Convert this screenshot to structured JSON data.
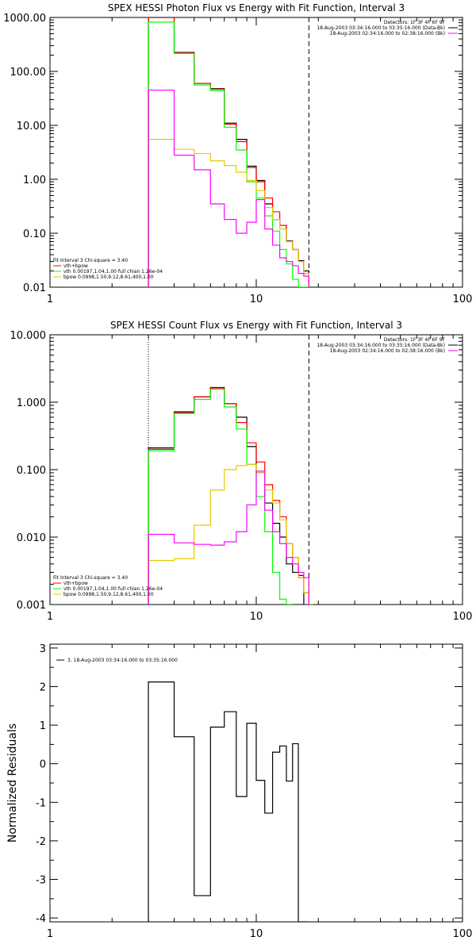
{
  "colors": {
    "data_black": "#000000",
    "total_red": "#ff0000",
    "vth_green": "#00ff00",
    "bpow_yellow": "#e6c800",
    "bk_magenta": "#ff00ff"
  },
  "chart_data": [
    {
      "type": "line",
      "title": "SPEX HESSI Photon Flux vs Energy with Fit Function, Interval 3",
      "xscale": "log",
      "yscale": "log",
      "xlim": [
        1,
        100
      ],
      "ylim": [
        0.01,
        1000
      ],
      "xtick_labels": [
        "1",
        "10",
        "100"
      ],
      "ytick_labels": [
        "1000.00",
        "100.00",
        "10.00",
        "1.00",
        "0.10",
        "0.01"
      ],
      "yticks": [
        1000,
        100,
        10,
        1,
        0.1,
        0.01
      ],
      "xticks": [
        1,
        10,
        100
      ],
      "lower_marker": 3.0,
      "upper_marker": 18.0,
      "legend_top": [
        "Detectors: 1F 3F 4F 6F 9F",
        "18-Aug-2003 03:34:16.000 to 03:35:16.000 (Data-Bk)",
        "18-Aug-2003 02:34:16.000 to 02:38:16.000 (Bk)"
      ],
      "legend_bottom": [
        "Fit Interval 3   Chi-square = 3.40",
        "vth+bpow",
        "vth 0.00197,1.04,1.00  full chian 1.26e-04",
        "bpow 0.0998,1.50,9.12,8.61,400,1.00"
      ],
      "edges": [
        3,
        4,
        5,
        6,
        7,
        8,
        9,
        10,
        11,
        12,
        13,
        14,
        15,
        16,
        17,
        18
      ],
      "series": [
        {
          "name": "Data-Bk",
          "color": "#000000",
          "values": [
            1000,
            225,
            60,
            48,
            11,
            5.5,
            1.75,
            0.95,
            0.35,
            0.18,
            0.14,
            0.072,
            0.05,
            0.031,
            0.02
          ]
        },
        {
          "name": "vth+bpow",
          "color": "#ff0000",
          "values": [
            1000,
            220,
            60,
            47,
            10.5,
            5.0,
            1.65,
            0.9,
            0.45,
            0.25,
            0.14,
            0.07,
            0.05,
            0.03,
            0.018
          ]
        },
        {
          "name": "vth",
          "color": "#00ff00",
          "values": [
            820,
            215,
            56,
            44,
            9.2,
            3.5,
            0.9,
            0.45,
            0.21,
            0.11,
            0.05,
            0.027,
            0.014,
            0.009,
            0.005
          ]
        },
        {
          "name": "bpow",
          "color": "#e6c800",
          "values": [
            5.5,
            3.6,
            3.0,
            2.2,
            1.8,
            1.35,
            0.95,
            0.62,
            0.3,
            0.18,
            0.12,
            0.07,
            0.05,
            0.03,
            0.018
          ]
        },
        {
          "name": "Bk",
          "color": "#ff00ff",
          "values": [
            45,
            2.8,
            1.5,
            0.35,
            0.18,
            0.1,
            0.16,
            0.42,
            0.12,
            0.06,
            0.035,
            0.03,
            0.025,
            0.018,
            0.016
          ]
        }
      ]
    },
    {
      "type": "line",
      "title": "SPEX HESSI Count Flux vs Energy with Fit Function, Interval 3",
      "xscale": "log",
      "yscale": "log",
      "xlim": [
        1,
        100
      ],
      "ylim": [
        0.001,
        10
      ],
      "xtick_labels": [
        "1",
        "10",
        "100"
      ],
      "ytick_labels": [
        "10.000",
        "1.000",
        "0.100",
        "0.010",
        "0.001"
      ],
      "yticks": [
        10,
        1,
        0.1,
        0.01,
        0.001
      ],
      "xticks": [
        1,
        10,
        100
      ],
      "lower_marker": 3.0,
      "upper_marker": 18.0,
      "legend_top": [
        "Detectors: 1F 3F 4F 6F 9F",
        "18-Aug-2003 03:34:16.000 to 03:35:16.000 (Data-Bk)",
        "18-Aug-2003 02:34:16.000 to 02:38:16.000 (Bk)"
      ],
      "legend_bottom": [
        "Fit Interval 3   Chi-square = 3.40",
        "vth+bpow",
        "vth 0.00197,1.04,1.00  full chian 1.26e-04",
        "bpow 0.0998,1.50,9.12,8.61,400,1.00"
      ],
      "edges": [
        3,
        4,
        5,
        6,
        7,
        8,
        9,
        10,
        11,
        12,
        13,
        14,
        15,
        16,
        17,
        18,
        19,
        20
      ],
      "series": [
        {
          "name": "Data-Bk",
          "color": "#000000",
          "values": [
            0.21,
            0.72,
            1.2,
            1.65,
            0.95,
            0.6,
            0.22,
            0.09,
            0.032,
            0.016,
            0.01,
            0.004,
            0.003,
            0.0027
          ]
        },
        {
          "name": "vth+bpow",
          "color": "#ff0000",
          "values": [
            0.2,
            0.7,
            1.2,
            1.62,
            0.95,
            0.5,
            0.25,
            0.13,
            0.06,
            0.035,
            0.02,
            0.008,
            0.005,
            0.0025,
            0.0015,
            0.001
          ]
        },
        {
          "name": "vth",
          "color": "#00ff00",
          "values": [
            0.19,
            0.68,
            1.1,
            1.55,
            0.85,
            0.4,
            0.12,
            0.04,
            0.012,
            0.003,
            0.0012,
            0.0006
          ]
        },
        {
          "name": "bpow",
          "color": "#e6c800",
          "values": [
            0.0045,
            0.0048,
            0.015,
            0.05,
            0.1,
            0.115,
            0.12,
            0.09,
            0.05,
            0.032,
            0.018,
            0.008,
            0.005,
            0.0025,
            0.0015,
            0.001
          ]
        },
        {
          "name": "Bk",
          "color": "#ff00ff",
          "values": [
            0.011,
            0.0082,
            0.0078,
            0.0076,
            0.0085,
            0.012,
            0.03,
            0.095,
            0.025,
            0.012,
            0.008,
            0.005,
            0.004,
            0.003,
            0.0025
          ]
        }
      ]
    },
    {
      "type": "line",
      "title": "",
      "xscale": "log",
      "yscale": "linear",
      "xlim": [
        1,
        100
      ],
      "ylim": [
        -4.1,
        3.1
      ],
      "ylabel": "Normalized Residuals",
      "xtick_labels": [
        "1",
        "10",
        "100"
      ],
      "ytick_labels": [
        "3",
        "2",
        "1",
        "0",
        "-1",
        "-2",
        "-3",
        "-4"
      ],
      "yticks": [
        3,
        2,
        1,
        0,
        -1,
        -2,
        -3,
        -4
      ],
      "xticks": [
        1,
        10,
        100
      ],
      "legend_top": [
        "3. 18-Aug-2003 03:34:16.000 to 03:35:16.000"
      ],
      "edges": [
        3,
        4,
        5,
        6,
        7,
        8,
        9,
        10,
        11,
        12,
        13,
        14,
        15,
        16,
        17,
        18
      ],
      "series": [
        {
          "name": "3. 18-Aug-2003 03:34:16.000 to 03:35:16.000",
          "color": "#000000",
          "values": [
            2.12,
            0.7,
            -3.42,
            0.95,
            1.35,
            -0.85,
            1.05,
            -0.43,
            -1.28,
            0.3,
            0.46,
            -0.45,
            0.52,
            -4.1,
            -4.1
          ]
        }
      ]
    }
  ]
}
